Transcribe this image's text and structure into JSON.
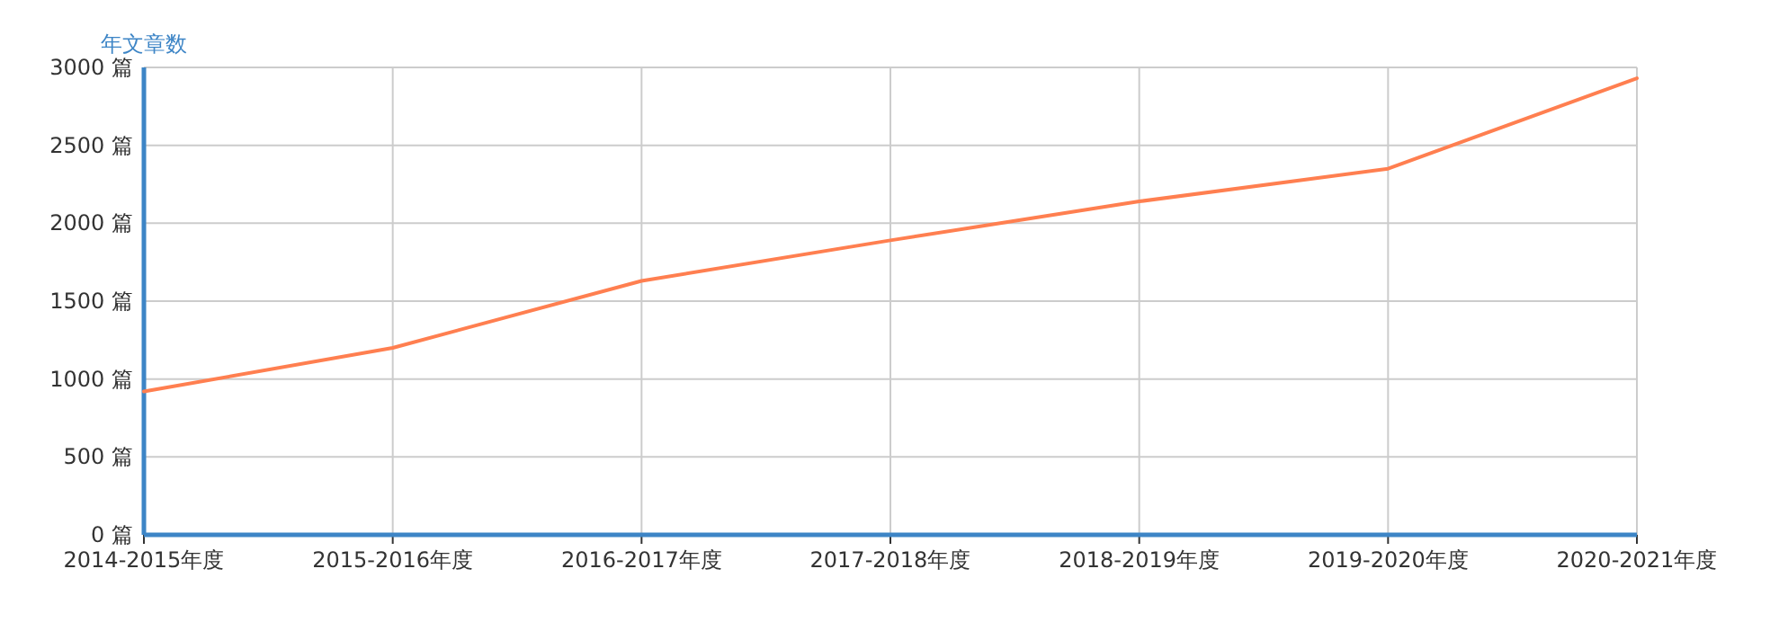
{
  "chart_data": {
    "type": "line",
    "ylabel": "年文章数",
    "categories": [
      "2014-2015年度",
      "2015-2016年度",
      "2016-2017年度",
      "2017-2018年度",
      "2018-2019年度",
      "2019-2020年度",
      "2020-2021年度"
    ],
    "series": [
      {
        "color": "#ff7f50",
        "values": [
          920,
          1200,
          1630,
          1890,
          2140,
          2350,
          2930
        ]
      }
    ],
    "ylim": [
      0,
      3000
    ],
    "yticks": [
      {
        "value": 0,
        "label": "0 篇"
      },
      {
        "value": 500,
        "label": "500 篇"
      },
      {
        "value": 1000,
        "label": "1000 篇"
      },
      {
        "value": 1500,
        "label": "1500 篇"
      },
      {
        "value": 2000,
        "label": "2000 篇"
      },
      {
        "value": 2500,
        "label": "2500 篇"
      },
      {
        "value": 3000,
        "label": "3000 篇"
      }
    ],
    "grid": true,
    "marker": "none",
    "line_style": "solid"
  }
}
